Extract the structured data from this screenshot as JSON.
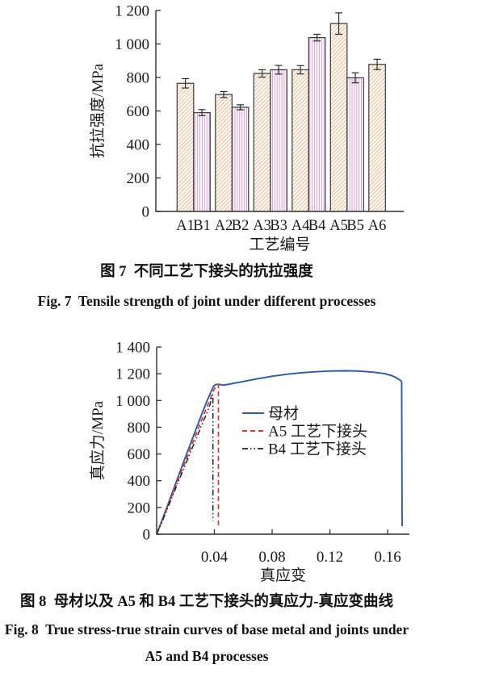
{
  "page": {
    "background": "#ffffff"
  },
  "figure7": {
    "caption_zh": "图 7  不同工艺下接头的抗拉强度",
    "caption_en": "Fig. 7  Tensile strength of joint under different processes"
  },
  "figure8": {
    "caption_zh": "图 8  母材以及 A5 和 B4 工艺下接头的真应力-真应变曲线",
    "caption_en_line1": "Fig. 8  True stress-true strain curves of base metal and joints under",
    "caption_en_line2": "A5 and B4 processes"
  },
  "chart_data": [
    {
      "id": "tensile-strength-bar-chart",
      "type": "bar",
      "title": "",
      "xlabel": "工艺编号",
      "ylabel": "抗拉强度/MPa",
      "ylim": [
        0,
        1200
      ],
      "yticks": [
        0,
        200,
        400,
        600,
        800,
        1000,
        1200
      ],
      "ytick_labels": [
        "0",
        "200",
        "400",
        "600",
        "800",
        "1 000",
        "1 200"
      ],
      "grid": false,
      "categories": [
        "A1",
        "B1",
        "A2",
        "B2",
        "A3",
        "B3",
        "A4",
        "B4",
        "A5",
        "B5",
        "A6"
      ],
      "values": [
        765,
        590,
        698,
        622,
        824,
        846,
        846,
        1038,
        1122,
        798,
        878
      ],
      "errors": [
        28,
        18,
        18,
        15,
        22,
        26,
        25,
        20,
        64,
        30,
        31
      ],
      "bar_styles": {
        "A": {
          "hatch": "diagonal",
          "color": "#EF9C5F"
        },
        "B": {
          "hatch": "vertical",
          "color": "#D79BD3"
        }
      },
      "bar_edge_color": "#3F3F3F",
      "axis_color": "#2F2F2F",
      "error_bar_color": "#2A2A2A"
    },
    {
      "id": "true-stress-strain-line-chart",
      "type": "line",
      "title": "",
      "xlabel": "真应变",
      "ylabel": "真应力/MPa",
      "xlim": [
        0,
        0.175
      ],
      "ylim": [
        0,
        1400
      ],
      "xticks": [
        0.04,
        0.08,
        0.12,
        0.16
      ],
      "xtick_labels": [
        "0.04",
        "0.08",
        "0.12",
        "0.16"
      ],
      "yticks": [
        0,
        200,
        400,
        600,
        800,
        1000,
        1200,
        1400
      ],
      "ytick_labels": [
        "0",
        "200",
        "400",
        "600",
        "800",
        "1 000",
        "1 200",
        "1 400"
      ],
      "grid": false,
      "legend_position": "inside-center",
      "axis_color": "#2F2F2F",
      "series": [
        {
          "key": "base-metal",
          "name": "母材",
          "color": "#2B5AA8",
          "style": "solid",
          "points": [
            [
              0,
              0
            ],
            [
              0.004,
              112
            ],
            [
              0.008,
              228
            ],
            [
              0.012,
              345
            ],
            [
              0.016,
              462
            ],
            [
              0.02,
              578
            ],
            [
              0.024,
              692
            ],
            [
              0.028,
              806
            ],
            [
              0.032,
              918
            ],
            [
              0.035,
              1000
            ],
            [
              0.0375,
              1062
            ],
            [
              0.0395,
              1108
            ],
            [
              0.041,
              1120
            ],
            [
              0.043,
              1121
            ],
            [
              0.045,
              1117
            ],
            [
              0.047,
              1116
            ],
            [
              0.05,
              1121
            ],
            [
              0.055,
              1132
            ],
            [
              0.06,
              1142
            ],
            [
              0.07,
              1163
            ],
            [
              0.08,
              1181
            ],
            [
              0.09,
              1196
            ],
            [
              0.1,
              1207
            ],
            [
              0.11,
              1215
            ],
            [
              0.12,
              1220
            ],
            [
              0.13,
              1222
            ],
            [
              0.14,
              1220
            ],
            [
              0.15,
              1212
            ],
            [
              0.158,
              1200
            ],
            [
              0.163,
              1185
            ],
            [
              0.166,
              1170
            ],
            [
              0.168,
              1156
            ],
            [
              0.1693,
              1146
            ],
            [
              0.1697,
              1138
            ],
            [
              0.17,
              60
            ]
          ]
        },
        {
          "key": "a5-joint",
          "name": "A5 工艺下接头",
          "color": "#E0342B",
          "style": "dashed",
          "points": [
            [
              0,
              0
            ],
            [
              0.004,
              106
            ],
            [
              0.008,
              216
            ],
            [
              0.012,
              327
            ],
            [
              0.016,
              438
            ],
            [
              0.02,
              548
            ],
            [
              0.024,
              658
            ],
            [
              0.028,
              768
            ],
            [
              0.032,
              876
            ],
            [
              0.035,
              956
            ],
            [
              0.0375,
              1022
            ],
            [
              0.0395,
              1078
            ],
            [
              0.041,
              1105
            ],
            [
              0.0422,
              1118
            ],
            [
              0.0428,
              1120
            ],
            [
              0.0428,
              50
            ]
          ]
        },
        {
          "key": "b4-joint",
          "name": "B4 工艺下接头",
          "color": "#222222",
          "style": "dashdotdot",
          "points": [
            [
              0,
              0
            ],
            [
              0.004,
              101
            ],
            [
              0.008,
              206
            ],
            [
              0.012,
              312
            ],
            [
              0.016,
              418
            ],
            [
              0.02,
              523
            ],
            [
              0.024,
              628
            ],
            [
              0.028,
              732
            ],
            [
              0.032,
              836
            ],
            [
              0.035,
              912
            ],
            [
              0.037,
              972
            ],
            [
              0.038,
              1018
            ],
            [
              0.0388,
              1040
            ],
            [
              0.039,
              1042
            ],
            [
              0.039,
              100
            ]
          ]
        }
      ]
    }
  ]
}
